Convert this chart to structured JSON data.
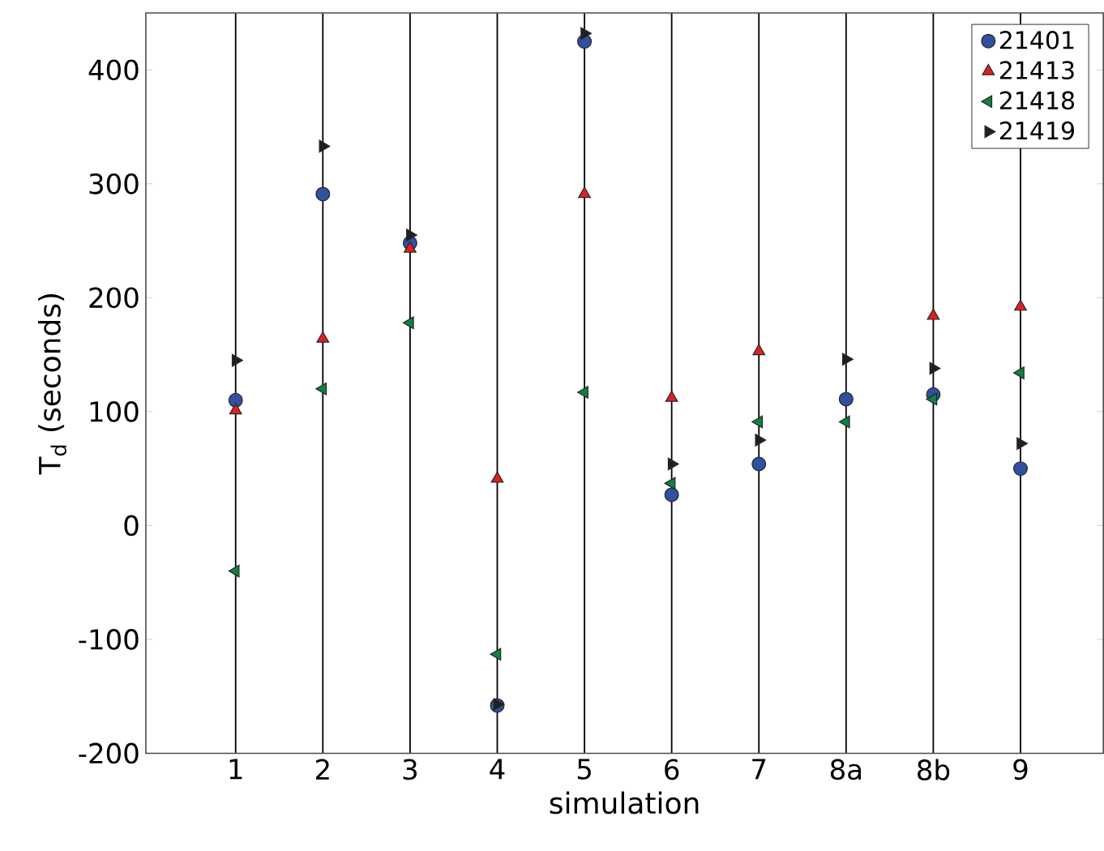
{
  "chart_data": {
    "type": "scatter",
    "xlabel": "simulation",
    "ylabel": "T$_{d}$ (seconds)",
    "categories": [
      "1",
      "2",
      "3",
      "4",
      "5",
      "6",
      "7",
      "8a",
      "8b",
      "9"
    ],
    "ylim": [
      -200,
      450
    ],
    "yticks": [
      -200,
      -100,
      0,
      100,
      200,
      300,
      400
    ],
    "grid": "x",
    "legend": "top right",
    "series": [
      {
        "name": "21401",
        "color": "#3050a0",
        "marker": "circle",
        "values": [
          110,
          291,
          248,
          -158,
          425,
          27,
          54,
          111,
          115,
          50
        ]
      },
      {
        "name": "21413",
        "color": "#e02020",
        "marker": "triangle",
        "values": [
          101,
          164,
          243,
          41,
          291,
          112,
          153,
          null,
          184,
          192
        ]
      },
      {
        "name": "21418",
        "color": "#108040",
        "marker": "triangle-left",
        "values": [
          -40,
          120,
          178,
          -113,
          117,
          37,
          91,
          91,
          111,
          134
        ]
      },
      {
        "name": "21419",
        "color": "#202020",
        "marker": "triangle-right",
        "values": [
          145,
          333,
          255,
          -157,
          432,
          54,
          75,
          146,
          138,
          72
        ]
      }
    ]
  }
}
